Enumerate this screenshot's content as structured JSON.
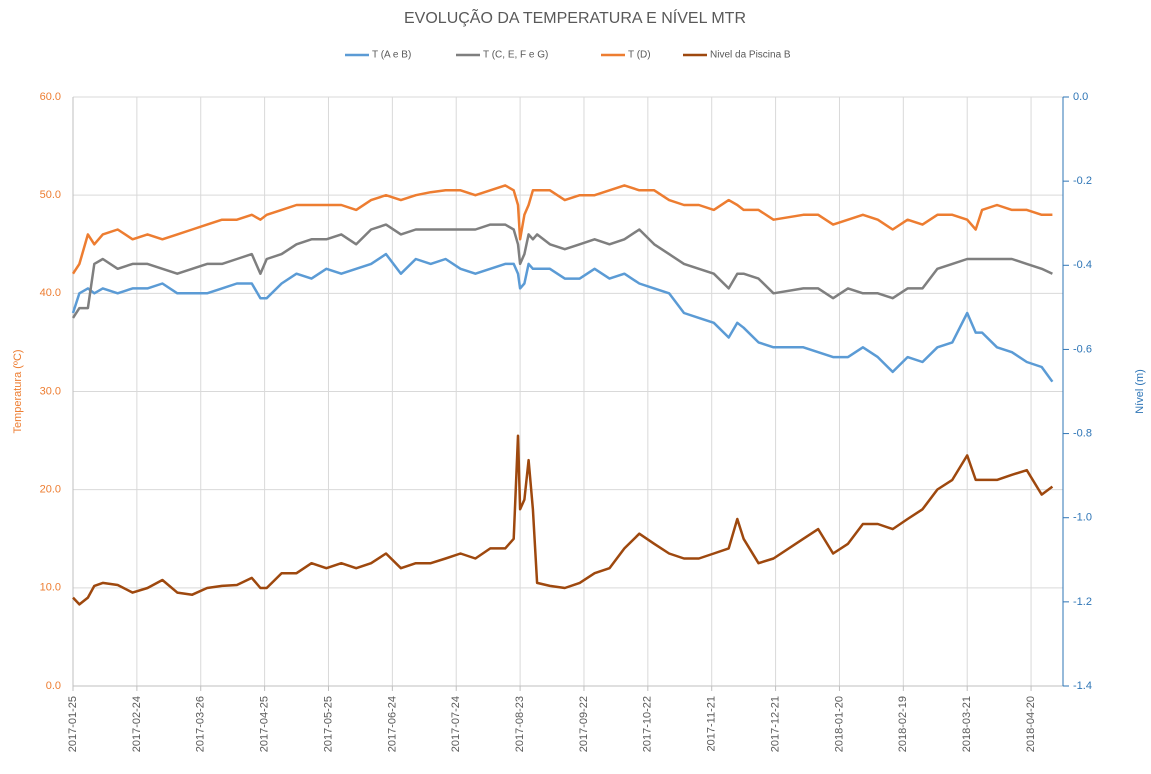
{
  "chart_data": {
    "type": "line",
    "title": "EVOLUÇÃO DA TEMPERATURA E NÍVEL MTR",
    "ylabel": "Temperatura (ºC)",
    "y2label": "Nível (m)",
    "ylabel_color": "#ed7d31",
    "y2label_color": "#2e75b6",
    "x": [
      "2017-01-25",
      "2017-01-28",
      "2017-02-01",
      "2017-02-04",
      "2017-02-08",
      "2017-02-15",
      "2017-02-22",
      "2017-03-01",
      "2017-03-08",
      "2017-03-15",
      "2017-03-22",
      "2017-03-29",
      "2017-04-05",
      "2017-04-12",
      "2017-04-19",
      "2017-04-23",
      "2017-04-26",
      "2017-05-03",
      "2017-05-10",
      "2017-05-17",
      "2017-05-24",
      "2017-05-31",
      "2017-06-07",
      "2017-06-14",
      "2017-06-21",
      "2017-06-28",
      "2017-07-05",
      "2017-07-12",
      "2017-07-19",
      "2017-07-26",
      "2017-08-02",
      "2017-08-09",
      "2017-08-16",
      "2017-08-20",
      "2017-08-22",
      "2017-08-23",
      "2017-08-25",
      "2017-08-27",
      "2017-08-29",
      "2017-08-31",
      "2017-09-06",
      "2017-09-13",
      "2017-09-20",
      "2017-09-27",
      "2017-10-04",
      "2017-10-11",
      "2017-10-18",
      "2017-10-25",
      "2017-11-01",
      "2017-11-08",
      "2017-11-15",
      "2017-11-22",
      "2017-11-29",
      "2017-12-03",
      "2017-12-06",
      "2017-12-13",
      "2017-12-20",
      "2018-01-03",
      "2018-01-10",
      "2018-01-17",
      "2018-01-24",
      "2018-01-31",
      "2018-02-07",
      "2018-02-14",
      "2018-02-21",
      "2018-02-28",
      "2018-03-07",
      "2018-03-14",
      "2018-03-21",
      "2018-03-25",
      "2018-03-28",
      "2018-04-04",
      "2018-04-11",
      "2018-04-18",
      "2018-04-25",
      "2018-04-30"
    ],
    "series": [
      {
        "name": "T (A e B)",
        "color": "#5b9bd5",
        "values": [
          38,
          40,
          40.5,
          40,
          40.5,
          40,
          40.5,
          40.5,
          41,
          40,
          40,
          40,
          40.5,
          41,
          41,
          39.5,
          39.5,
          41,
          42,
          41.5,
          42.5,
          42,
          42.5,
          43,
          44,
          42,
          43.5,
          43,
          43.5,
          42.5,
          42,
          42.5,
          43,
          43,
          42,
          40.5,
          41,
          43,
          42.5,
          42.5,
          42.5,
          41.5,
          41.5,
          42.5,
          41.5,
          42,
          41,
          40.5,
          40,
          38,
          37.5,
          37,
          35.5,
          37,
          36.5,
          35,
          34.5,
          34.5,
          34,
          33.5,
          33.5,
          34.5,
          33.5,
          32,
          33.5,
          33,
          34.5,
          35,
          38,
          36,
          36,
          34.5,
          34,
          33,
          32.5,
          31
        ]
      },
      {
        "name": "T (C, E, F e G)",
        "color": "#7f7f7f",
        "values": [
          37.5,
          38.5,
          38.5,
          43,
          43.5,
          42.5,
          43,
          43,
          42.5,
          42,
          42.5,
          43,
          43,
          43.5,
          44,
          42,
          43.5,
          44,
          45,
          45.5,
          45.5,
          46,
          45,
          46.5,
          47,
          46,
          46.5,
          46.5,
          46.5,
          46.5,
          46.5,
          47,
          47,
          46.5,
          45,
          43,
          44,
          46,
          45.5,
          46,
          45,
          44.5,
          45,
          45.5,
          45,
          45.5,
          46.5,
          45,
          44,
          43,
          42.5,
          42,
          40.5,
          42,
          42,
          41.5,
          40,
          40.5,
          40.5,
          39.5,
          40.5,
          40,
          40,
          39.5,
          40.5,
          40.5,
          42.5,
          43,
          43.5,
          43.5,
          43.5,
          43.5,
          43.5,
          43,
          42.5,
          42
        ]
      },
      {
        "name": "T (D)",
        "color": "#ed7d31",
        "values": [
          42,
          43,
          46,
          45,
          46,
          46.5,
          45.5,
          46,
          45.5,
          46,
          46.5,
          47,
          47.5,
          47.5,
          48,
          47.5,
          48,
          48.5,
          49,
          49,
          49,
          49,
          48.5,
          49.5,
          50,
          49.5,
          50,
          50.3,
          50.5,
          50.5,
          50,
          50.5,
          51,
          50.5,
          49,
          45.5,
          48,
          49,
          50.5,
          50.5,
          50.5,
          49.5,
          50,
          50,
          50.5,
          51,
          50.5,
          50.5,
          49.5,
          49,
          49,
          48.5,
          49.5,
          49,
          48.5,
          48.5,
          47.5,
          48,
          48,
          47,
          47.5,
          48,
          47.5,
          46.5,
          47.5,
          47,
          48,
          48,
          47.5,
          46.5,
          48.5,
          49,
          48.5,
          48.5,
          48,
          48
        ]
      },
      {
        "name": "Nivel da Piscina B",
        "color": "#9e480e",
        "axis": "y2",
        "values": [
          -1.19,
          -1.206,
          -1.19,
          -1.162,
          -1.155,
          -1.16,
          -1.178,
          -1.167,
          -1.148,
          -1.178,
          -1.183,
          -1.167,
          -1.162,
          -1.16,
          -1.143,
          -1.167,
          -1.167,
          -1.132,
          -1.132,
          -1.108,
          -1.12,
          -1.108,
          -1.12,
          -1.108,
          -1.085,
          -1.12,
          -1.108,
          -1.108,
          -1.097,
          -1.085,
          -1.097,
          -1.073,
          -1.073,
          -1.05,
          -0.805,
          -0.98,
          -0.957,
          -0.863,
          -0.98,
          -1.155,
          -1.162,
          -1.167,
          -1.155,
          -1.132,
          -1.12,
          -1.073,
          -1.038,
          -1.062,
          -1.085,
          -1.097,
          -1.097,
          -1.085,
          -1.073,
          -1.003,
          -1.05,
          -1.108,
          -1.097,
          -1.05,
          -1.027,
          -1.085,
          -1.062,
          -1.015,
          -1.015,
          -1.027,
          -1.003,
          -0.98,
          -0.933,
          -0.91,
          -0.852,
          -0.91,
          -0.91,
          -0.91,
          -0.898,
          -0.887,
          -0.945,
          -0.926
        ]
      }
    ],
    "xlim": [
      "2017-01-25",
      "2018-05-05"
    ],
    "xticks": [
      "2017-01-25",
      "2017-02-24",
      "2017-03-26",
      "2017-04-25",
      "2017-05-25",
      "2017-06-24",
      "2017-07-24",
      "2017-08-23",
      "2017-09-22",
      "2017-10-22",
      "2017-11-21",
      "2017-12-21",
      "2018-01-20",
      "2018-02-19",
      "2018-03-21",
      "2018-04-20"
    ],
    "ylim": [
      0,
      60
    ],
    "yticks": [
      {
        "value": 0,
        "label": "0.0"
      },
      {
        "value": 10,
        "label": "10.0"
      },
      {
        "value": 20,
        "label": "20.0"
      },
      {
        "value": 30,
        "label": "30.0"
      },
      {
        "value": 40,
        "label": "40.0"
      },
      {
        "value": 50,
        "label": "50.0"
      },
      {
        "value": 60,
        "label": "60.0"
      }
    ],
    "y2lim": [
      -1.4,
      0
    ],
    "y2ticks": [
      {
        "value": 0,
        "label": "0.0"
      },
      -0.2,
      -0.4,
      -0.6,
      -0.8,
      {
        "value": -1,
        "label": "-1.0"
      },
      -1.2,
      -1.4
    ],
    "grid": true,
    "legend": "top"
  }
}
